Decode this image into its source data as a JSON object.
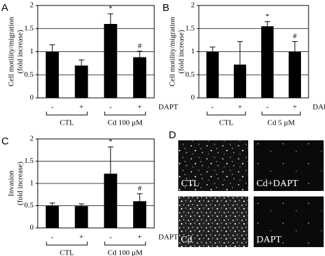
{
  "chart_data": [
    {
      "type": "bar",
      "panel": "A",
      "ylabel": [
        "Cell motility/migration",
        "(fold increase)"
      ],
      "categories": [
        "-",
        "+",
        "-",
        "+"
      ],
      "groups": [
        "CTL",
        "Cd 100 µM"
      ],
      "x_label": "DAPT",
      "values": [
        1.0,
        0.7,
        1.6,
        0.88
      ],
      "errors": [
        0.15,
        0.12,
        0.22,
        0.13
      ],
      "bar_annotations": [
        null,
        null,
        "*",
        "#"
      ],
      "color": "#000000",
      "ylim": [
        0,
        2
      ],
      "yticks": [
        0,
        0.5,
        1,
        1.5,
        2
      ],
      "grid": true
    },
    {
      "type": "bar",
      "panel": "B",
      "ylabel": [
        "Cell motility/migration",
        "(fold increase)"
      ],
      "categories": [
        "-",
        "+",
        "-",
        "+"
      ],
      "groups": [
        "CTL",
        "Cd 5 µM"
      ],
      "x_label": "DAPT",
      "values": [
        1.0,
        0.72,
        1.55,
        1.0
      ],
      "errors": [
        0.1,
        0.5,
        0.1,
        0.22
      ],
      "bar_annotations": [
        null,
        null,
        "*",
        "#"
      ],
      "color": "#000000",
      "ylim": [
        0,
        2
      ],
      "yticks": [
        0,
        0.5,
        1,
        1.5,
        2
      ],
      "grid": true
    },
    {
      "type": "bar",
      "panel": "C",
      "ylabel": [
        "Invasion",
        "(fold increase)"
      ],
      "categories": [
        "-",
        "+",
        "-",
        "+"
      ],
      "groups": [
        "CTL",
        "Cd 100 µM"
      ],
      "x_label": "DAPT",
      "values": [
        0.5,
        0.49,
        1.22,
        0.6
      ],
      "errors": [
        0.06,
        0.05,
        0.6,
        0.17
      ],
      "bar_annotations": [
        null,
        null,
        "*",
        "#"
      ],
      "color": "#000000",
      "ylim": [
        0,
        2
      ],
      "yticks": [
        0,
        0.5,
        1,
        1.5,
        2
      ],
      "grid": true
    }
  ],
  "panel_d": {
    "panel": "D",
    "images": [
      "CTL",
      "Cd+DAPT",
      "Cd",
      "DAPT"
    ]
  }
}
